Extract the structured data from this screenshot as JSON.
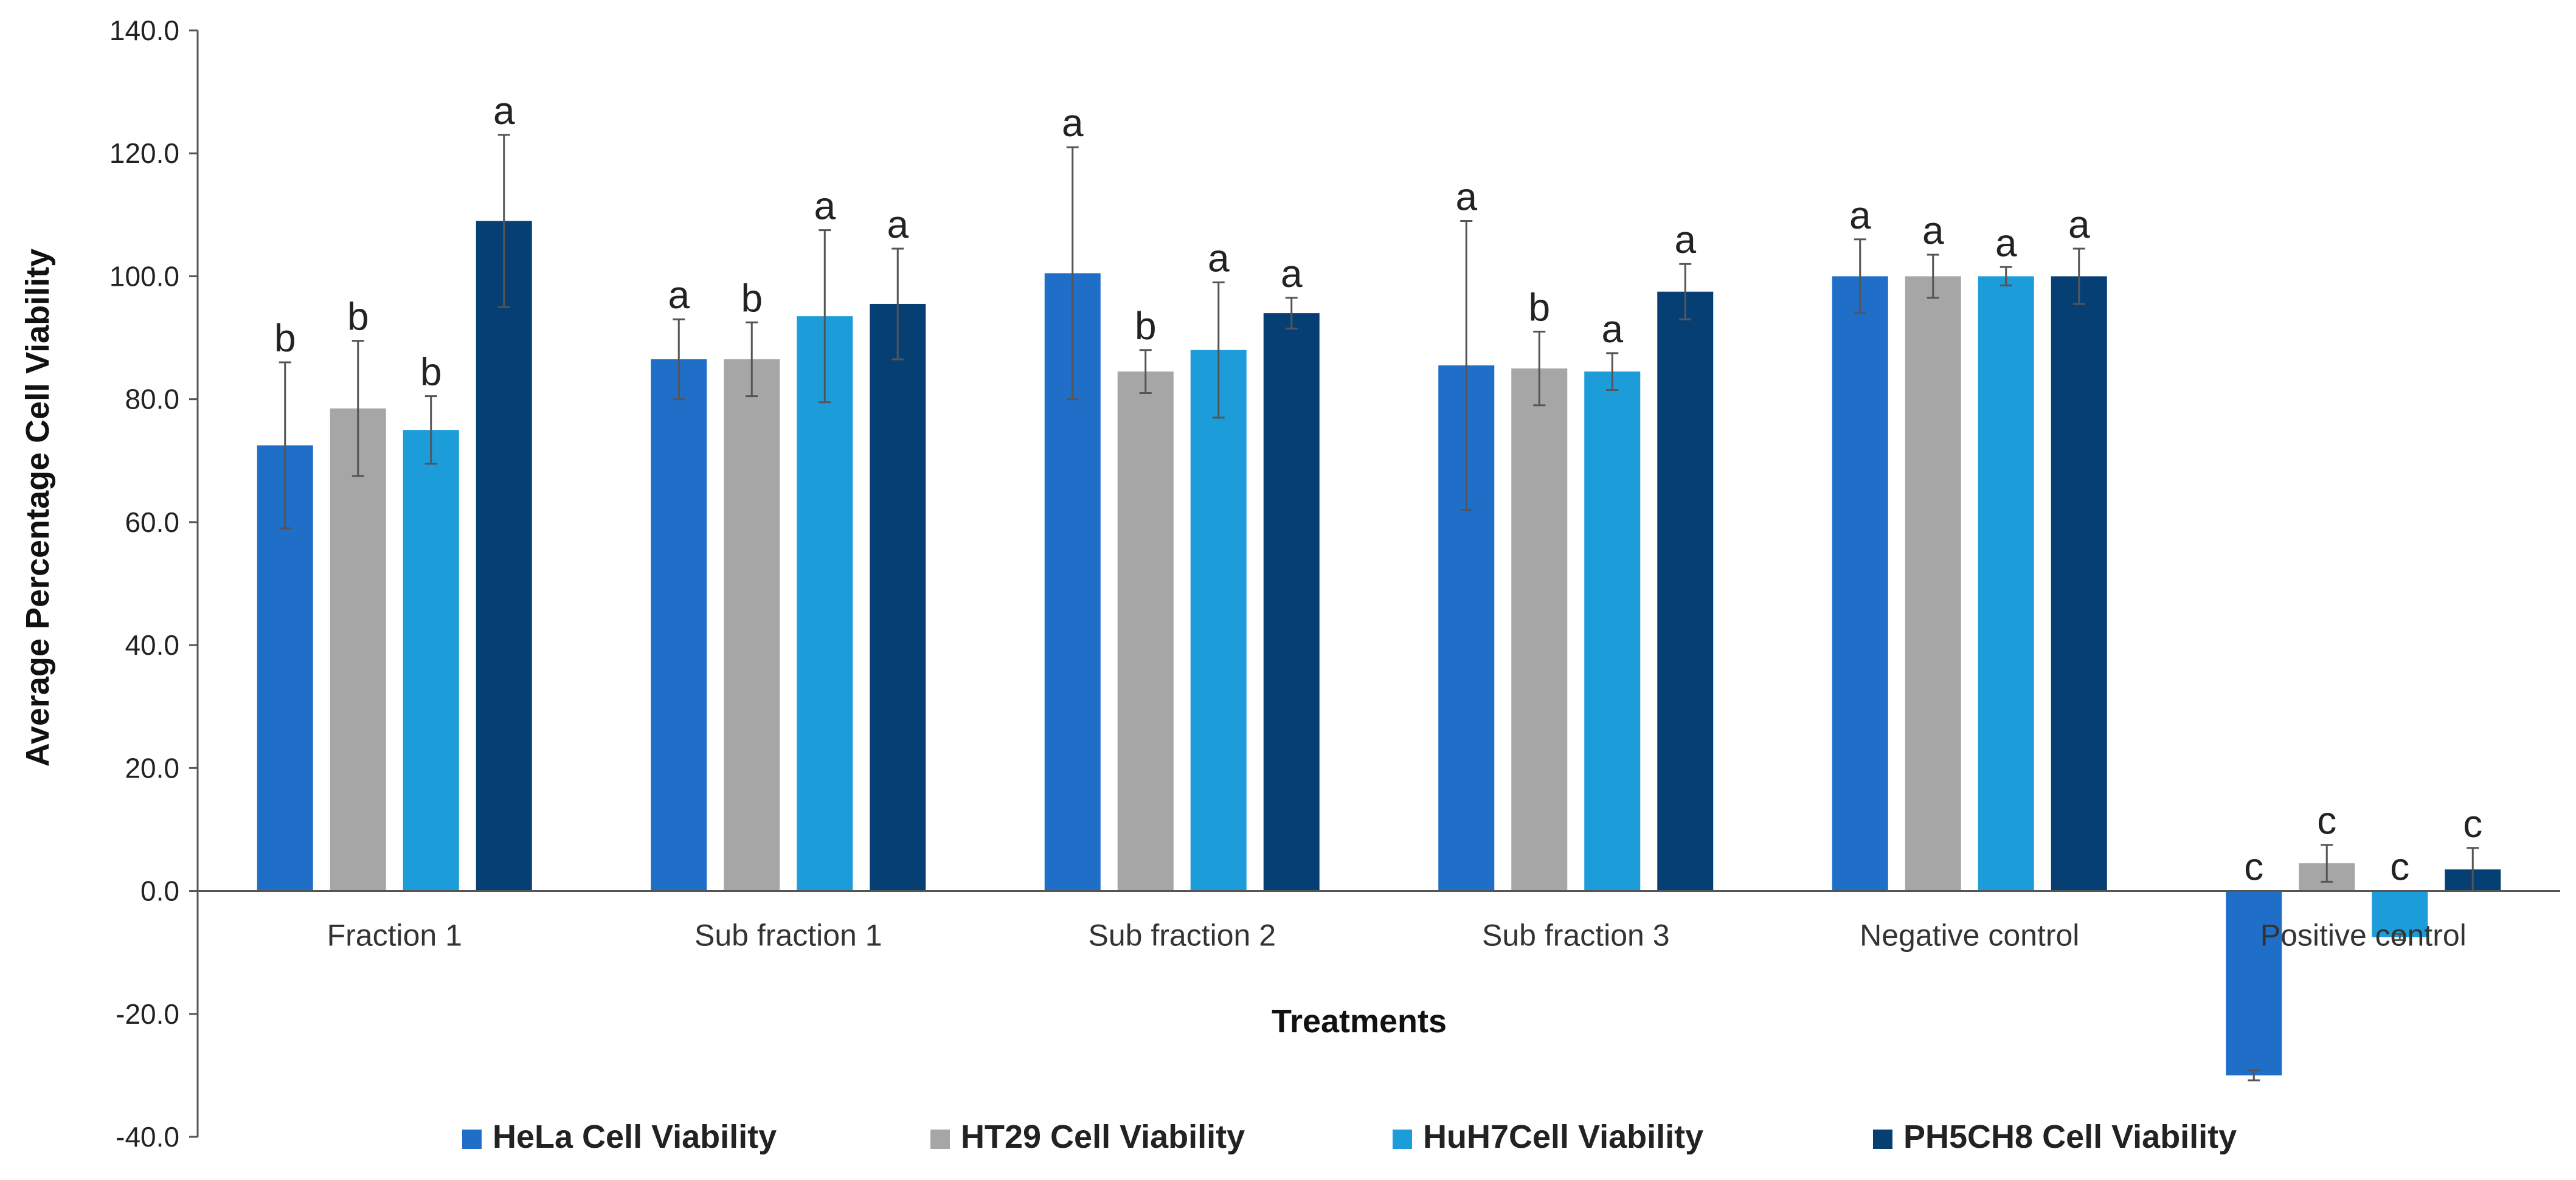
{
  "chart_data": {
    "type": "bar",
    "title": "",
    "xlabel": "Treatments",
    "ylabel": "Average Percentage Cell Viability",
    "ylim": [
      -40,
      140
    ],
    "yticks": [
      "140.0",
      "120.0",
      "100.0",
      "80.0",
      "60.0",
      "40.0",
      "20.0",
      "0.0",
      "-20.0",
      "-40.0"
    ],
    "categories": [
      "Fraction 1",
      "Sub fraction 1",
      "Sub fraction 2",
      "Sub fraction 3",
      "Negative control",
      "Positive control"
    ],
    "series": [
      {
        "name": "HeLa Cell Viability",
        "color": "#1f6fc9",
        "values": [
          72.5,
          86.5,
          100.5,
          85.5,
          100.0,
          -30.0
        ],
        "errors": [
          13.5,
          6.5,
          20.5,
          23.5,
          6.0,
          0.8
        ],
        "letters": [
          "b",
          "a",
          "a",
          "a",
          "a",
          "c"
        ]
      },
      {
        "name": "HT29 Cell Viability",
        "color": "#a6a6a6",
        "values": [
          78.5,
          86.5,
          84.5,
          85.0,
          100.0,
          4.5
        ],
        "errors": [
          11.0,
          6.0,
          3.5,
          6.0,
          3.5,
          3.0
        ],
        "letters": [
          "b",
          "b",
          "b",
          "b",
          "a",
          "c"
        ]
      },
      {
        "name": "HuH7Cell Viability",
        "color": "#1c9cd9",
        "values": [
          75.0,
          93.5,
          88.0,
          84.5,
          100.0,
          -7.5
        ],
        "errors": [
          5.5,
          14.0,
          11.0,
          3.0,
          1.5,
          0.5
        ],
        "letters": [
          "b",
          "a",
          "a",
          "a",
          "a",
          "c"
        ]
      },
      {
        "name": "PH5CH8 Cell Viability",
        "color": "#063f74",
        "values": [
          109.0,
          95.5,
          94.0,
          97.5,
          100.0,
          3.5
        ],
        "errors": [
          14.0,
          9.0,
          2.5,
          4.5,
          4.5,
          3.5
        ],
        "letters": [
          "a",
          "a",
          "a",
          "a",
          "a",
          "c"
        ]
      }
    ],
    "legend_position": "bottom",
    "grid": false
  }
}
